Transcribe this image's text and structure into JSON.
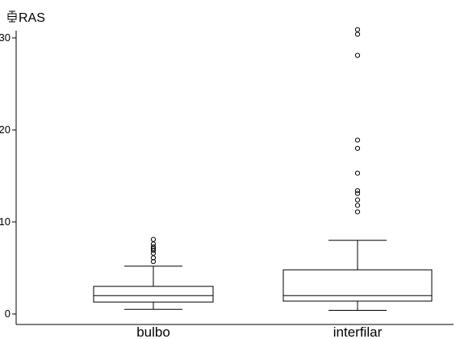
{
  "chart_data": {
    "type": "boxplot",
    "title": "",
    "xlabel": "",
    "ylabel": "",
    "legend": {
      "label": "RAS",
      "placement": "top-left",
      "icon": "boxplot-icon"
    },
    "categories": [
      "bulbo",
      "interfilar"
    ],
    "ylim": [
      0,
      31
    ],
    "yticks": [
      0,
      10,
      20,
      30
    ],
    "grid": false,
    "colors": {
      "stroke": "#000000",
      "fill": "#ffffff"
    },
    "series": [
      {
        "category": "bulbo",
        "whisker_low": 0.5,
        "q1": 1.3,
        "median": 2.0,
        "q3": 3.0,
        "whisker_high": 5.2,
        "outliers": [
          5.7,
          6.1,
          6.6,
          6.9,
          7.1,
          7.3,
          7.6,
          8.1
        ]
      },
      {
        "category": "interfilar",
        "whisker_low": 0.4,
        "q1": 1.4,
        "median": 2.0,
        "q3": 4.8,
        "whisker_high": 8.0,
        "outliers": [
          11.1,
          11.8,
          12.4,
          13.1,
          13.4,
          15.3,
          18.0,
          18.9,
          28.1,
          30.4,
          30.9
        ]
      }
    ]
  }
}
